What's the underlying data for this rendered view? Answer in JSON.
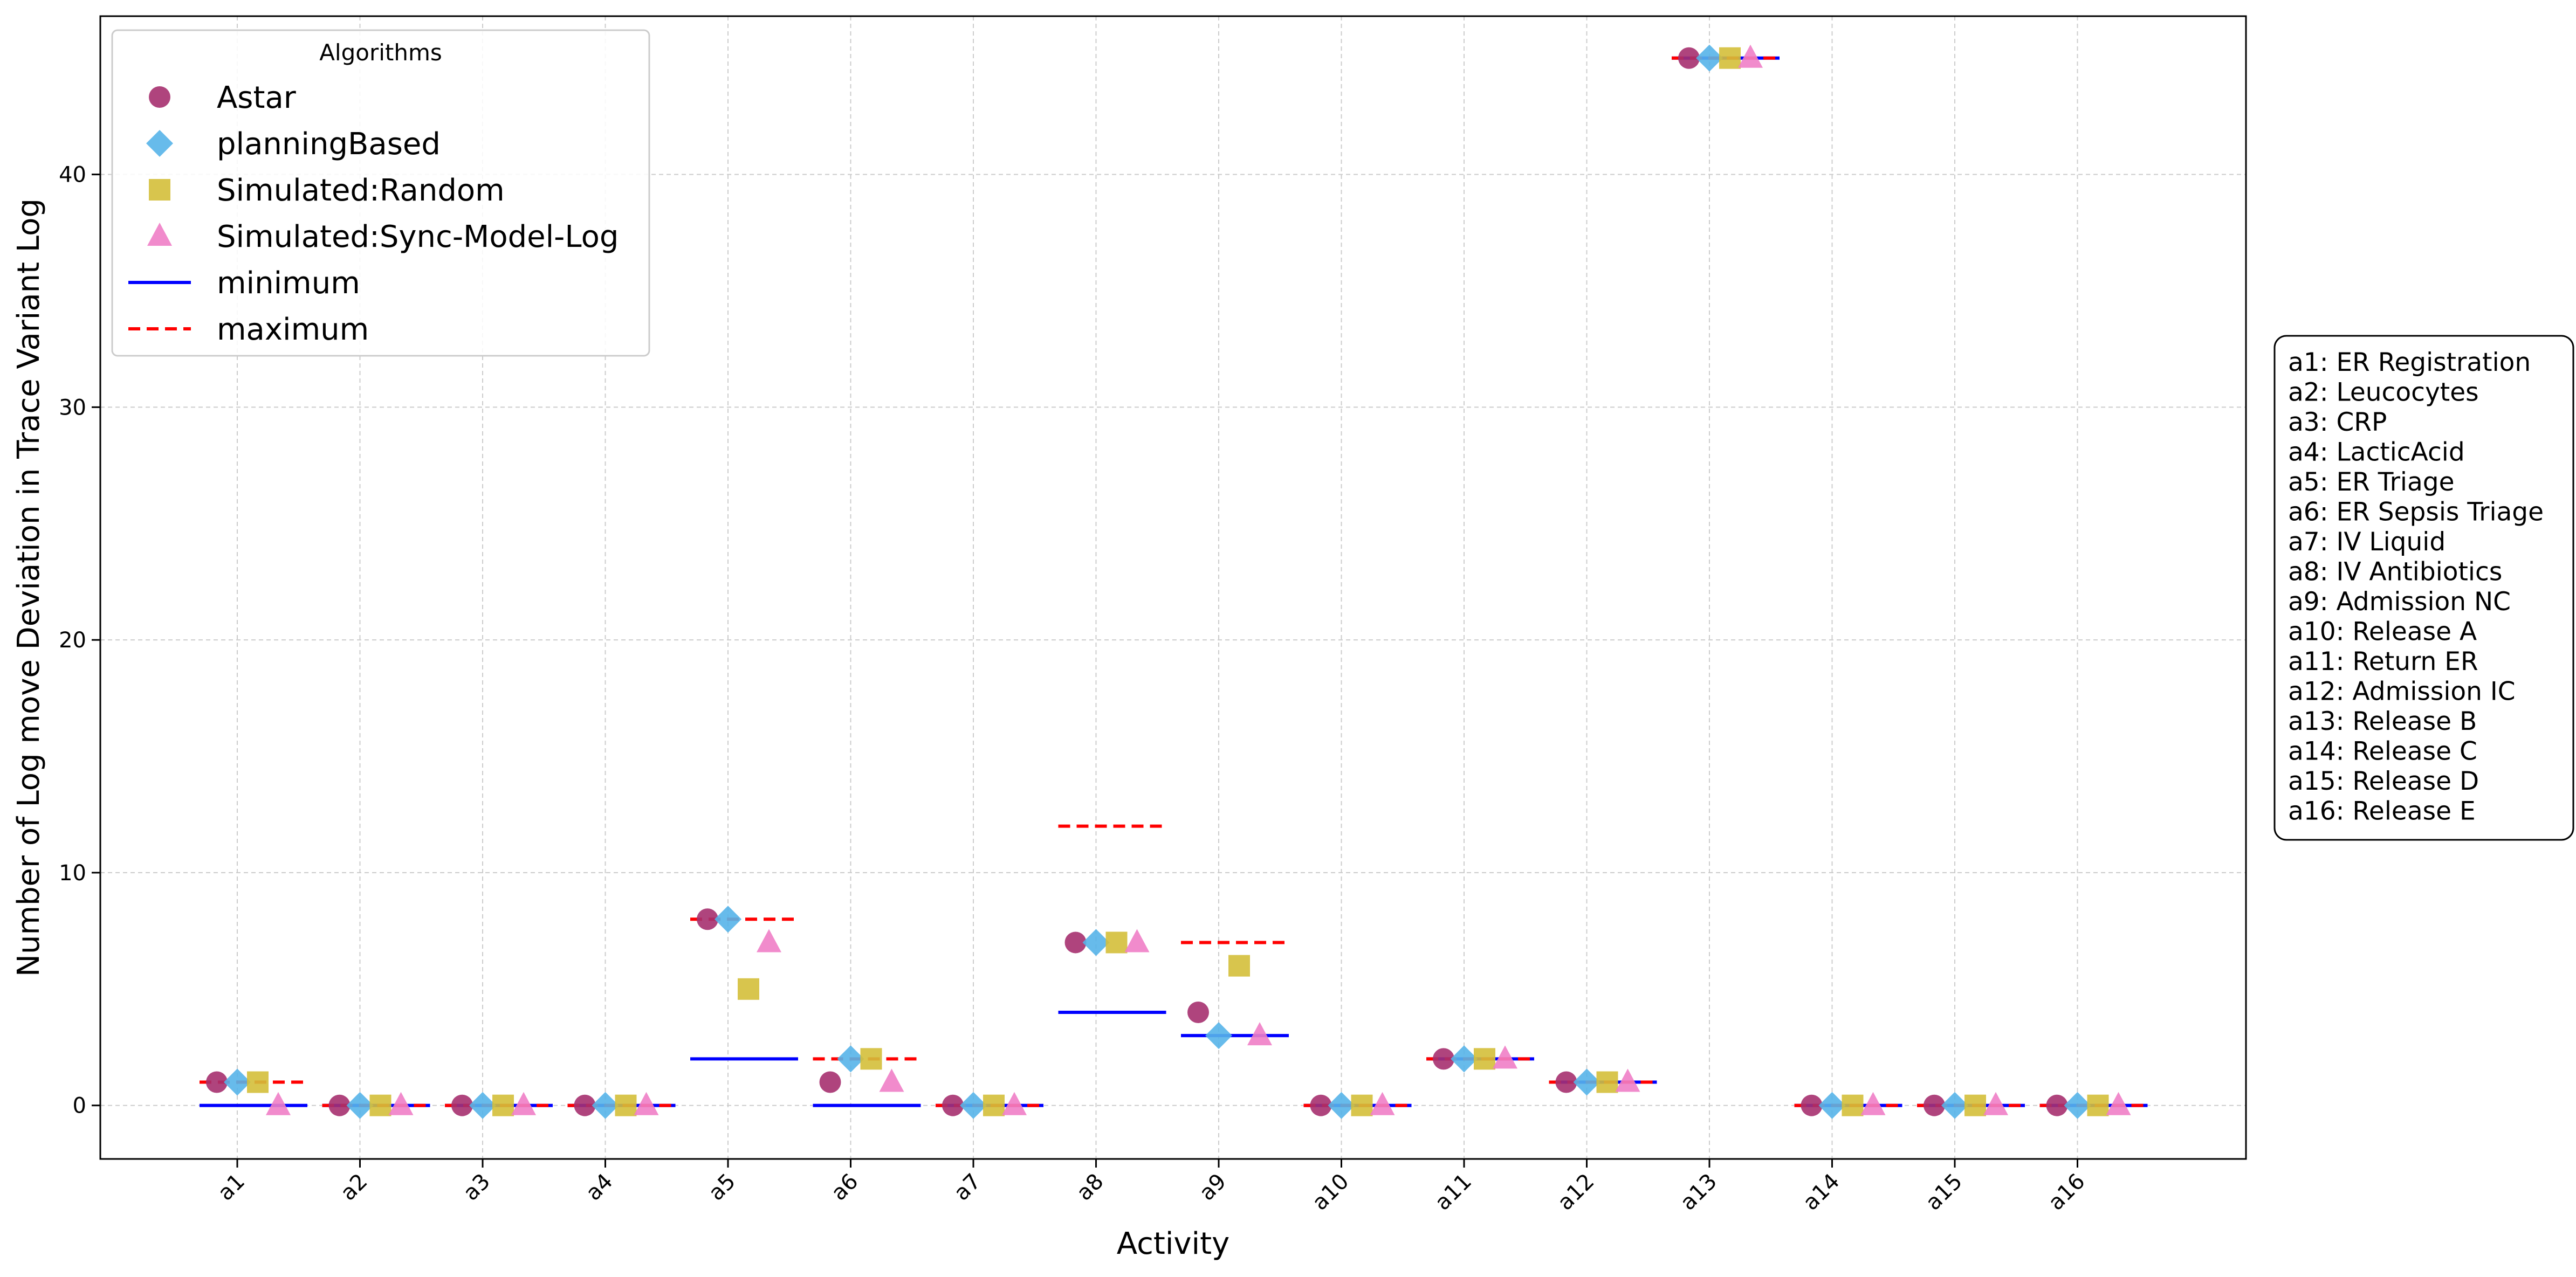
{
  "chart_data": {
    "type": "scatter",
    "title": "",
    "xlabel": "Activity",
    "ylabel": "Number of Log move Deviation  in Trace Variant Log",
    "ylim": [
      -2.3,
      46.8
    ],
    "yticks": [
      0,
      10,
      20,
      30,
      40
    ],
    "grid": true,
    "legend": {
      "title": "Algorithms",
      "placement": "top-left"
    },
    "categories": [
      "a1",
      "a2",
      "a3",
      "a4",
      "a5",
      "a6",
      "a7",
      "a8",
      "a9",
      "a10",
      "a11",
      "a12",
      "a13",
      "a14",
      "a15",
      "a16"
    ],
    "series": [
      {
        "name": "Astar",
        "marker": "circle",
        "color": "#a6306f",
        "values": [
          1,
          0,
          0,
          0,
          8,
          1,
          0,
          7,
          4,
          0,
          2,
          1,
          45,
          0,
          0,
          0
        ]
      },
      {
        "name": "planningBased",
        "marker": "diamond",
        "color": "#56b4e9",
        "values": [
          1,
          0,
          0,
          0,
          8,
          2,
          0,
          7,
          3,
          0,
          2,
          1,
          45,
          0,
          0,
          0
        ]
      },
      {
        "name": "Simulated:Random",
        "marker": "square",
        "color": "#d4bf3a",
        "values": [
          1,
          0,
          0,
          0,
          5,
          2,
          0,
          7,
          6,
          0,
          2,
          1,
          45,
          0,
          0,
          0
        ]
      },
      {
        "name": "Simulated:Sync-Model-Log",
        "marker": "triangle",
        "color": "#f07ec6",
        "values": [
          0,
          0,
          0,
          0,
          7,
          1,
          0,
          7,
          3,
          0,
          2,
          1,
          45,
          0,
          0,
          0
        ]
      }
    ],
    "reference_lines": [
      {
        "name": "minimum",
        "style": "solid",
        "color": "#0000ff",
        "values": [
          0,
          0,
          0,
          0,
          2,
          0,
          0,
          4,
          3,
          0,
          2,
          1,
          45,
          0,
          0,
          0
        ]
      },
      {
        "name": "maximum",
        "style": "dashed",
        "color": "#ff0000",
        "values": [
          1,
          0,
          0,
          0,
          8,
          2,
          0,
          12,
          7,
          0,
          2,
          1,
          45,
          0,
          0,
          0
        ]
      }
    ],
    "activity_mapping": [
      "a1: ER Registration",
      "a2: Leucocytes",
      "a3: CRP",
      "a4: LacticAcid",
      "a5: ER Triage",
      "a6: ER Sepsis Triage",
      "a7: IV Liquid",
      "a8: IV Antibiotics",
      "a9: Admission NC",
      "a10: Release A",
      "a11: Return ER",
      "a12: Admission IC",
      "a13: Release B",
      "a14: Release C",
      "a15: Release D",
      "a16: Release E"
    ]
  }
}
